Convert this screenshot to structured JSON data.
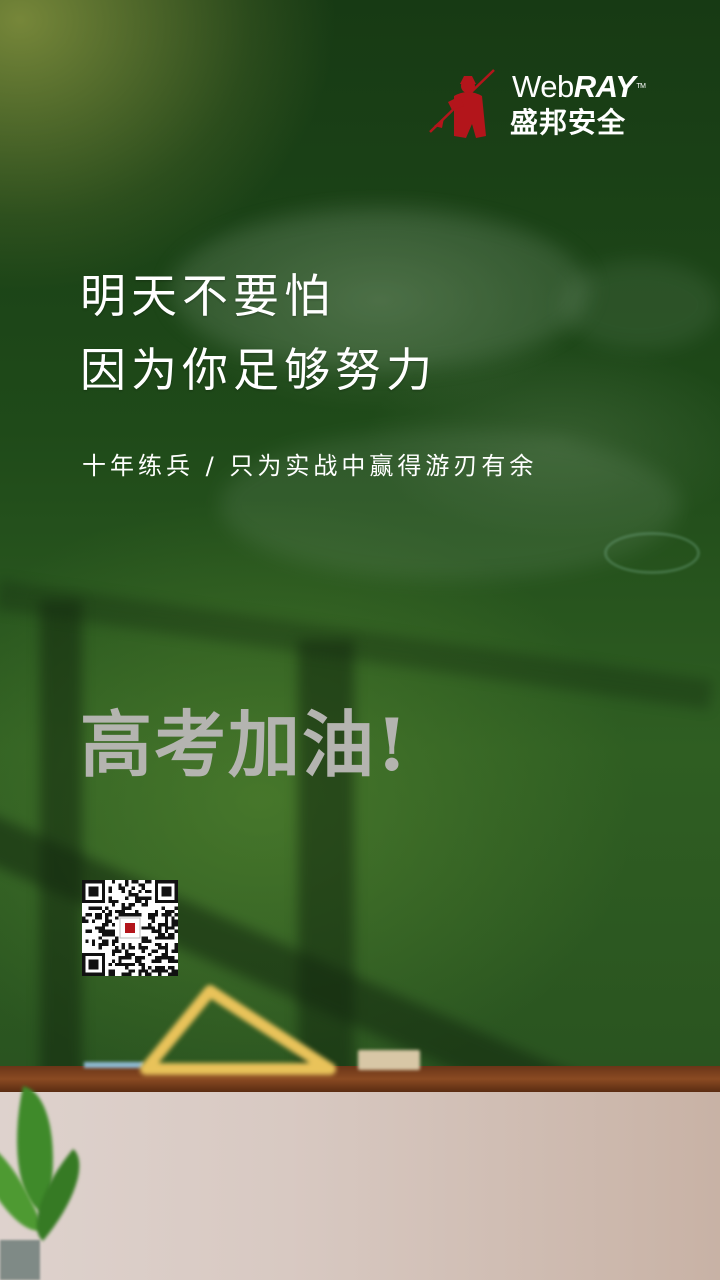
{
  "brand": {
    "name_prefix": "Web",
    "name_suffix": "RAY",
    "trademark": "TM",
    "chinese_name": "盛邦安全",
    "accent_color": "#b3151b"
  },
  "poster": {
    "headline_line1": "明天不要怕",
    "headline_line2": "因为你足够努力",
    "subline": "十年练兵 / 只为实战中赢得游刃有余",
    "slogan": "高考加油!"
  },
  "qr_code": {
    "icon": "qr-code-icon"
  }
}
